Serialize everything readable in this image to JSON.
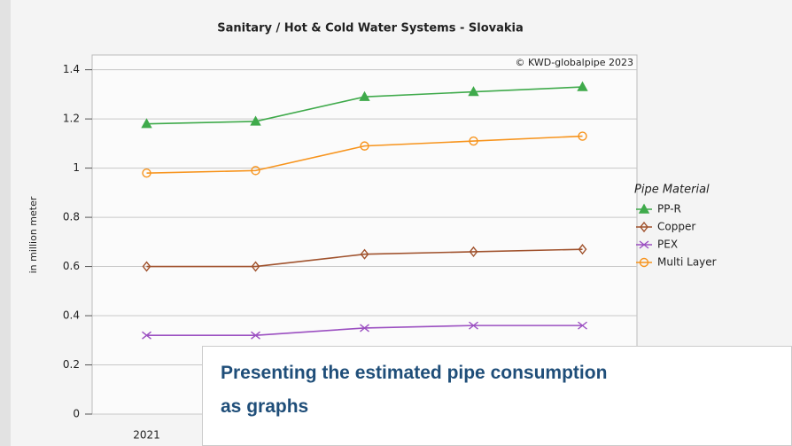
{
  "chart_data": {
    "type": "line",
    "title": "Sanitary / Hot & Cold Water Systems - Slovakia",
    "annotation": "© KWD-globalpipe 2023",
    "y_label": "in million meter",
    "legend_title": "Pipe Material",
    "legend": "right",
    "grid": true,
    "categories": [
      "2021",
      null,
      null,
      null,
      null
    ],
    "ylim": [
      0,
      1.46
    ],
    "yticks": [
      0,
      0.2,
      0.4,
      0.6,
      0.8,
      1,
      1.2,
      1.4
    ],
    "series": [
      {
        "name": "PP-R",
        "color": "#3faa4b",
        "marker": "triangle",
        "values": [
          1.18,
          1.19,
          1.29,
          1.31,
          1.33
        ]
      },
      {
        "name": "Copper",
        "color": "#a0522d",
        "marker": "diamond",
        "values": [
          0.6,
          0.6,
          0.65,
          0.66,
          0.67
        ]
      },
      {
        "name": "PEX",
        "color": "#9b4fc1",
        "marker": "x",
        "values": [
          0.32,
          0.32,
          0.35,
          0.36,
          0.36
        ]
      },
      {
        "name": "Multi Layer",
        "color": "#f7941d",
        "marker": "circle",
        "values": [
          0.98,
          0.99,
          1.09,
          1.11,
          1.13
        ]
      }
    ]
  },
  "overlay": {
    "lines": [
      "Presenting the estimated pipe consumption",
      "as graphs"
    ]
  }
}
